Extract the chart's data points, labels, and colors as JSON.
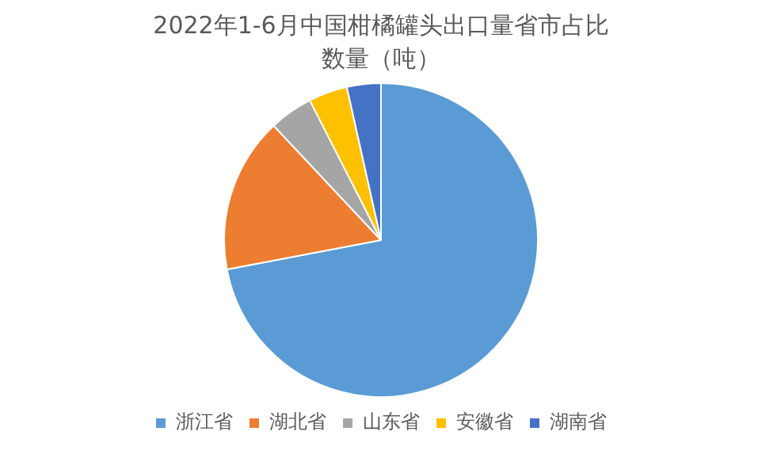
{
  "chart_data": {
    "type": "pie",
    "title": "2022年1-6月中国柑橘罐头出口量省市占比",
    "subtitle": "数量（吨）",
    "categories": [
      "浙江省",
      "湖北省",
      "山东省",
      "安徽省",
      "湖南省"
    ],
    "values": [
      72,
      16,
      4.5,
      4,
      3.5
    ],
    "colors": [
      "#5b9bd5",
      "#ed7d31",
      "#a5a5a5",
      "#ffc000",
      "#4472c4"
    ],
    "legend": "bottom"
  }
}
